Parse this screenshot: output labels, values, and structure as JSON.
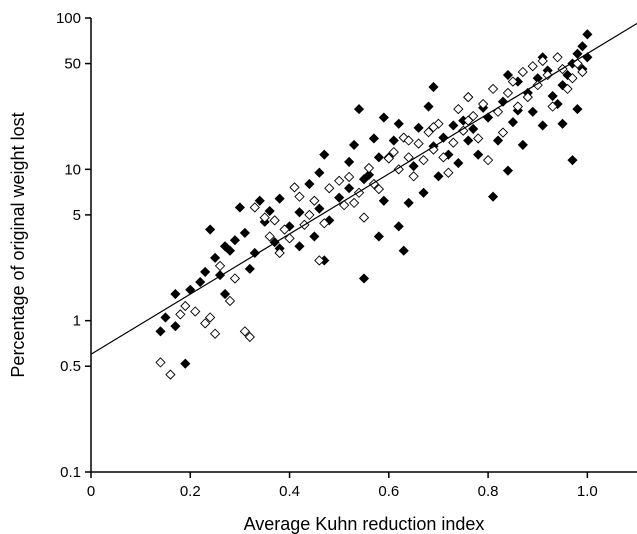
{
  "chart_data": {
    "type": "scatter",
    "title": "",
    "xlabel": "Average Kuhn reduction index",
    "ylabel": "Percentage of original weight lost",
    "xlim": [
      0,
      1.1
    ],
    "ylim": [
      0.1,
      100
    ],
    "y_scale": "log",
    "x_ticks": [
      {
        "value": 0,
        "label": "0"
      },
      {
        "value": 0.2,
        "label": "0.2"
      },
      {
        "value": 0.4,
        "label": "0.4"
      },
      {
        "value": 0.6,
        "label": "0.6"
      },
      {
        "value": 0.8,
        "label": "0.8"
      },
      {
        "value": 1.0,
        "label": "1.0"
      }
    ],
    "y_ticks": [
      {
        "value": 0.1,
        "label": "0.1"
      },
      {
        "value": 0.5,
        "label": "0.5"
      },
      {
        "value": 1,
        "label": "1"
      },
      {
        "value": 5,
        "label": "5"
      },
      {
        "value": 10,
        "label": "10"
      },
      {
        "value": 50,
        "label": "50"
      },
      {
        "value": 100,
        "label": "100"
      }
    ],
    "grid": false,
    "colors": {
      "filled": "#000000",
      "open": "#000000",
      "line": "#000000"
    },
    "fit_line": {
      "x": [
        0,
        1.1
      ],
      "y": [
        0.6,
        92
      ]
    },
    "series": [
      {
        "marker": "filled-diamond",
        "points": [
          [
            0.14,
            0.85
          ],
          [
            0.15,
            1.05
          ],
          [
            0.17,
            1.5
          ],
          [
            0.19,
            0.52
          ],
          [
            0.2,
            1.6
          ],
          [
            0.22,
            1.8
          ],
          [
            0.23,
            2.1
          ],
          [
            0.25,
            2.6
          ],
          [
            0.26,
            2.0
          ],
          [
            0.27,
            3.1
          ],
          [
            0.29,
            3.4
          ],
          [
            0.31,
            3.8
          ],
          [
            0.33,
            2.8
          ],
          [
            0.35,
            4.5
          ],
          [
            0.37,
            3.3
          ],
          [
            0.24,
            4.0
          ],
          [
            0.3,
            5.6
          ],
          [
            0.34,
            6.2
          ],
          [
            0.38,
            6.4
          ],
          [
            0.4,
            4.2
          ],
          [
            0.42,
            5.2
          ],
          [
            0.42,
            3.1
          ],
          [
            0.44,
            8.0
          ],
          [
            0.45,
            3.6
          ],
          [
            0.46,
            9.5
          ],
          [
            0.47,
            12.5
          ],
          [
            0.48,
            4.6
          ],
          [
            0.5,
            6.5
          ],
          [
            0.52,
            11.2
          ],
          [
            0.53,
            14.5
          ],
          [
            0.55,
            8.6
          ],
          [
            0.56,
            9.2
          ],
          [
            0.57,
            16.0
          ],
          [
            0.58,
            3.6
          ],
          [
            0.59,
            6.2
          ],
          [
            0.6,
            12.0
          ],
          [
            0.61,
            15.5
          ],
          [
            0.62,
            4.2
          ],
          [
            0.63,
            2.9
          ],
          [
            0.64,
            6.0
          ],
          [
            0.65,
            10.5
          ],
          [
            0.66,
            18.8
          ],
          [
            0.67,
            7.0
          ],
          [
            0.68,
            26.0
          ],
          [
            0.69,
            14.2
          ],
          [
            0.7,
            9.0
          ],
          [
            0.71,
            16.2
          ],
          [
            0.72,
            12.5
          ],
          [
            0.73,
            19.5
          ],
          [
            0.74,
            11.0
          ],
          [
            0.75,
            21.0
          ],
          [
            0.76,
            15.5
          ],
          [
            0.77,
            18.5
          ],
          [
            0.78,
            12.5
          ],
          [
            0.79,
            25.5
          ],
          [
            0.8,
            22.0
          ],
          [
            0.81,
            6.6
          ],
          [
            0.82,
            15.5
          ],
          [
            0.83,
            28.0
          ],
          [
            0.84,
            9.8
          ],
          [
            0.85,
            20.5
          ],
          [
            0.86,
            38.0
          ],
          [
            0.87,
            14.5
          ],
          [
            0.88,
            32.0
          ],
          [
            0.89,
            24.0
          ],
          [
            0.9,
            40.0
          ],
          [
            0.91,
            19.5
          ],
          [
            0.92,
            45.0
          ],
          [
            0.93,
            30.5
          ],
          [
            0.94,
            27.0
          ],
          [
            0.95,
            36.0
          ],
          [
            0.96,
            42.0
          ],
          [
            0.97,
            50.0
          ],
          [
            0.97,
            11.5
          ],
          [
            0.98,
            58.0
          ],
          [
            0.98,
            25.0
          ],
          [
            0.99,
            65.0
          ],
          [
            0.99,
            46.0
          ],
          [
            1.0,
            78.0
          ],
          [
            1.0,
            55.0
          ],
          [
            0.55,
            1.9
          ],
          [
            0.47,
            2.5
          ],
          [
            0.27,
            1.5
          ],
          [
            0.17,
            0.92
          ],
          [
            0.86,
            24.5
          ],
          [
            0.91,
            55.0
          ],
          [
            0.95,
            20.0
          ],
          [
            0.84,
            42.0
          ],
          [
            0.76,
            30.0
          ],
          [
            0.69,
            35.0
          ],
          [
            0.62,
            20.0
          ],
          [
            0.58,
            12.0
          ],
          [
            0.52,
            7.5
          ],
          [
            0.46,
            5.5
          ],
          [
            0.38,
            3.0
          ],
          [
            0.32,
            2.2
          ],
          [
            0.28,
            2.9
          ],
          [
            0.36,
            5.3
          ],
          [
            0.54,
            25.0
          ],
          [
            0.59,
            22.0
          ]
        ]
      },
      {
        "marker": "open-diamond",
        "points": [
          [
            0.14,
            0.53
          ],
          [
            0.16,
            0.44
          ],
          [
            0.18,
            1.1
          ],
          [
            0.19,
            1.25
          ],
          [
            0.21,
            1.15
          ],
          [
            0.23,
            0.96
          ],
          [
            0.24,
            1.05
          ],
          [
            0.25,
            0.82
          ],
          [
            0.26,
            2.3
          ],
          [
            0.28,
            1.35
          ],
          [
            0.29,
            1.9
          ],
          [
            0.31,
            0.85
          ],
          [
            0.32,
            0.78
          ],
          [
            0.33,
            5.6
          ],
          [
            0.35,
            4.8
          ],
          [
            0.36,
            3.6
          ],
          [
            0.37,
            4.6
          ],
          [
            0.38,
            2.8
          ],
          [
            0.39,
            4.0
          ],
          [
            0.4,
            3.5
          ],
          [
            0.41,
            7.6
          ],
          [
            0.42,
            6.6
          ],
          [
            0.43,
            4.3
          ],
          [
            0.44,
            5.0
          ],
          [
            0.45,
            6.2
          ],
          [
            0.46,
            2.5
          ],
          [
            0.47,
            4.4
          ],
          [
            0.48,
            7.5
          ],
          [
            0.5,
            8.4
          ],
          [
            0.51,
            5.8
          ],
          [
            0.52,
            8.9
          ],
          [
            0.53,
            6.0
          ],
          [
            0.54,
            7.0
          ],
          [
            0.55,
            4.8
          ],
          [
            0.56,
            10.2
          ],
          [
            0.57,
            8.0
          ],
          [
            0.58,
            7.4
          ],
          [
            0.6,
            11.8
          ],
          [
            0.61,
            13.0
          ],
          [
            0.62,
            10.0
          ],
          [
            0.63,
            16.2
          ],
          [
            0.64,
            12.0
          ],
          [
            0.65,
            9.0
          ],
          [
            0.66,
            14.8
          ],
          [
            0.67,
            11.5
          ],
          [
            0.68,
            17.6
          ],
          [
            0.69,
            13.5
          ],
          [
            0.7,
            20.0
          ],
          [
            0.71,
            12.0
          ],
          [
            0.72,
            9.5
          ],
          [
            0.73,
            15.0
          ],
          [
            0.74,
            25.0
          ],
          [
            0.75,
            18.0
          ],
          [
            0.76,
            30.0
          ],
          [
            0.77,
            22.5
          ],
          [
            0.78,
            16.0
          ],
          [
            0.79,
            27.0
          ],
          [
            0.8,
            11.5
          ],
          [
            0.81,
            34.0
          ],
          [
            0.82,
            24.0
          ],
          [
            0.83,
            17.5
          ],
          [
            0.84,
            32.0
          ],
          [
            0.85,
            38.0
          ],
          [
            0.86,
            26.0
          ],
          [
            0.87,
            44.0
          ],
          [
            0.88,
            30.0
          ],
          [
            0.89,
            48.0
          ],
          [
            0.9,
            36.0
          ],
          [
            0.91,
            52.0
          ],
          [
            0.92,
            42.0
          ],
          [
            0.93,
            26.0
          ],
          [
            0.94,
            55.0
          ],
          [
            0.95,
            46.0
          ],
          [
            0.96,
            34.0
          ],
          [
            0.97,
            40.0
          ],
          [
            0.98,
            50.0
          ],
          [
            0.99,
            44.0
          ],
          [
            0.76,
            21.0
          ],
          [
            0.69,
            19.0
          ],
          [
            0.64,
            15.5
          ]
        ]
      }
    ]
  }
}
